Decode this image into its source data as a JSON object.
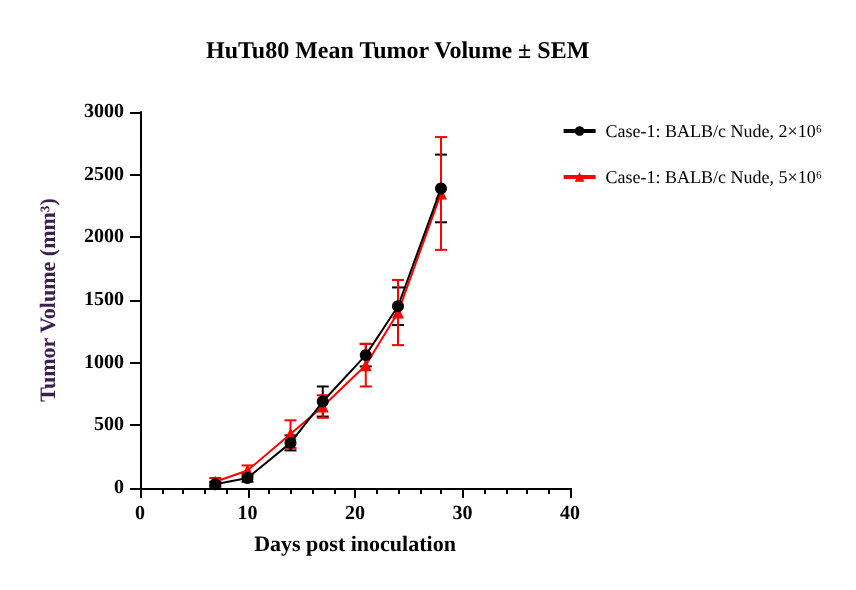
{
  "chart_data": {
    "type": "line",
    "title": "HuTu80 Mean Tumor Volume ± SEM",
    "xlabel": "Days post inoculation",
    "ylabel": "Tumor Volume (mm³)",
    "x": [
      7,
      10,
      14,
      17,
      21,
      24,
      28
    ],
    "series": [
      {
        "name": "Case-1: BALB/c Nude, 2×10⁶",
        "color": "#000000",
        "marker": "circle",
        "values": [
          30,
          80,
          360,
          690,
          1060,
          1450,
          2390
        ],
        "errors": [
          20,
          30,
          60,
          120,
          90,
          150,
          270
        ]
      },
      {
        "name": "Case-1: BALB/c Nude, 5×10⁶",
        "color": "#ff0000",
        "marker": "triangle",
        "values": [
          50,
          140,
          430,
          650,
          980,
          1400,
          2350
        ],
        "errors": [
          30,
          40,
          110,
          90,
          170,
          260,
          450
        ]
      }
    ],
    "xlim": [
      0,
      40
    ],
    "xticks": [
      0,
      10,
      20,
      30,
      40
    ],
    "ylim": [
      0,
      3000
    ],
    "yticks": [
      0,
      500,
      1000,
      1500,
      2000,
      2500,
      3000
    ],
    "grid": false,
    "legend": "right",
    "line_style": "solid"
  }
}
